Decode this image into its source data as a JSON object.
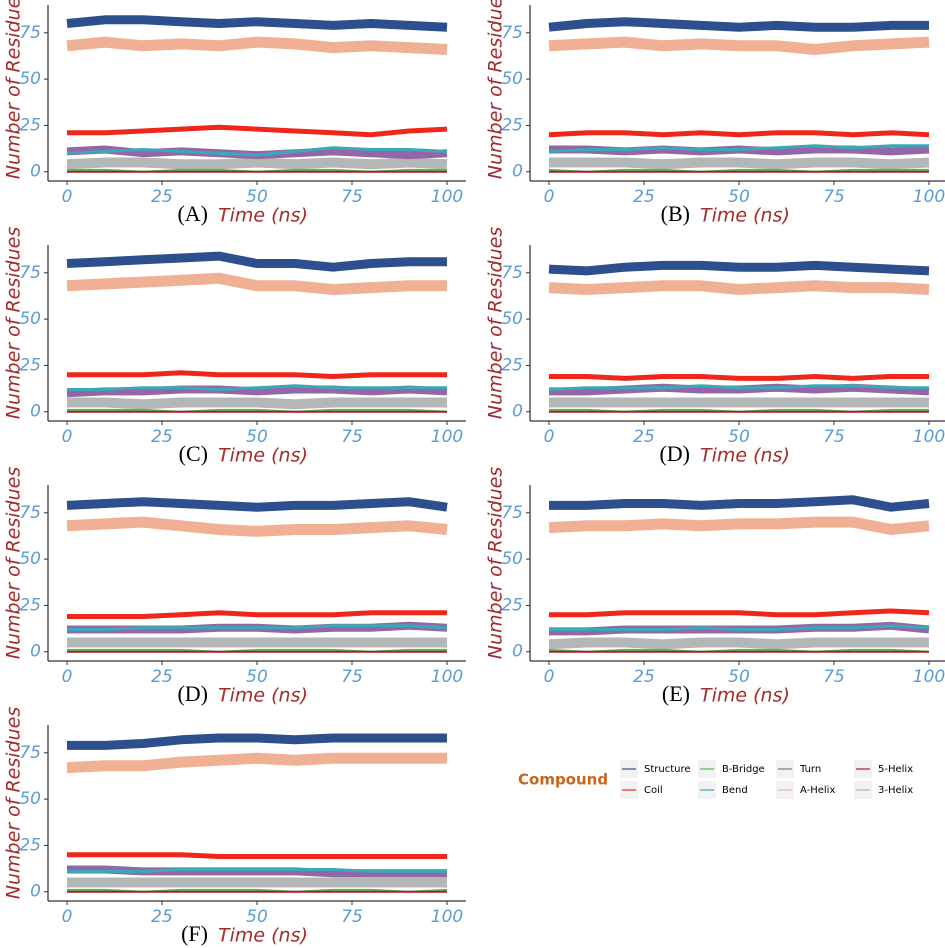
{
  "chart_data": [
    {
      "type": "line",
      "label": "(A)",
      "xlabel": "Time (ns)",
      "ylabel": "Number of Residues",
      "x": [
        0,
        10,
        20,
        30,
        40,
        50,
        60,
        70,
        80,
        90,
        100
      ],
      "xlim": [
        -5,
        105
      ],
      "ylim": [
        -5,
        90
      ],
      "xticks": [
        0,
        25,
        50,
        75,
        100
      ],
      "yticks": [
        0,
        25,
        50,
        75
      ],
      "series": [
        {
          "name": "Structure",
          "color": "#2e4f8e",
          "values": [
            80,
            82,
            82,
            81,
            80,
            81,
            80,
            79,
            80,
            79,
            78
          ]
        },
        {
          "name": "Coil",
          "color": "#f0261a",
          "values": [
            21,
            21,
            22,
            23,
            24,
            23,
            22,
            21,
            20,
            22,
            23
          ]
        },
        {
          "name": "B-Bridge",
          "color": "#4dbd4d",
          "values": [
            1,
            1,
            0,
            1,
            1,
            0,
            1,
            1,
            0,
            1,
            1
          ]
        },
        {
          "name": "Bend",
          "color": "#3ba8b8",
          "values": [
            10,
            11,
            12,
            11,
            10,
            9,
            11,
            13,
            12,
            12,
            11
          ]
        },
        {
          "name": "Turn",
          "color": "#9366a8",
          "values": [
            11,
            12,
            10,
            11,
            10,
            9,
            10,
            11,
            10,
            9,
            10
          ]
        },
        {
          "name": "A-Helix",
          "color": "#f0b094",
          "values": [
            68,
            70,
            68,
            69,
            68,
            70,
            69,
            67,
            68,
            67,
            66
          ]
        },
        {
          "name": "5-Helix",
          "color": "#b01a2a",
          "values": [
            0,
            0,
            0,
            0,
            0,
            0,
            0,
            0,
            0,
            0,
            0
          ]
        },
        {
          "name": "3-Helix",
          "color": "#b3b8b6",
          "values": [
            4,
            5,
            5,
            4,
            4,
            5,
            4,
            5,
            4,
            5,
            4
          ]
        }
      ]
    },
    {
      "type": "line",
      "label": "(B)",
      "xlabel": "Time (ns)",
      "ylabel": "Number of Residues",
      "x": [
        0,
        10,
        20,
        30,
        40,
        50,
        60,
        70,
        80,
        90,
        100
      ],
      "xlim": [
        -5,
        105
      ],
      "ylim": [
        -5,
        90
      ],
      "xticks": [
        0,
        25,
        50,
        75,
        100
      ],
      "yticks": [
        0,
        25,
        50,
        75
      ],
      "series": [
        {
          "name": "Structure",
          "color": "#2e4f8e",
          "values": [
            78,
            80,
            81,
            80,
            79,
            78,
            79,
            78,
            78,
            79,
            79
          ]
        },
        {
          "name": "Coil",
          "color": "#f0261a",
          "values": [
            20,
            21,
            21,
            20,
            21,
            20,
            21,
            21,
            20,
            21,
            20
          ]
        },
        {
          "name": "B-Bridge",
          "color": "#4dbd4d",
          "values": [
            1,
            0,
            1,
            1,
            0,
            1,
            1,
            0,
            1,
            1,
            1
          ]
        },
        {
          "name": "Bend",
          "color": "#3ba8b8",
          "values": [
            11,
            12,
            12,
            13,
            12,
            12,
            13,
            14,
            13,
            14,
            14
          ]
        },
        {
          "name": "Turn",
          "color": "#9366a8",
          "values": [
            12,
            12,
            11,
            12,
            11,
            12,
            11,
            12,
            12,
            11,
            12
          ]
        },
        {
          "name": "A-Helix",
          "color": "#f0b094",
          "values": [
            68,
            69,
            70,
            68,
            69,
            68,
            68,
            66,
            68,
            69,
            70
          ]
        },
        {
          "name": "5-Helix",
          "color": "#b01a2a",
          "values": [
            0,
            0,
            0,
            0,
            0,
            0,
            0,
            0,
            0,
            0,
            0
          ]
        },
        {
          "name": "3-Helix",
          "color": "#b3b8b6",
          "values": [
            5,
            5,
            5,
            4,
            5,
            5,
            4,
            5,
            5,
            4,
            5
          ]
        }
      ]
    },
    {
      "type": "line",
      "label": "(C)",
      "xlabel": "Time (ns)",
      "ylabel": "Number of Residues",
      "x": [
        0,
        10,
        20,
        30,
        40,
        50,
        60,
        70,
        80,
        90,
        100
      ],
      "xlim": [
        -5,
        105
      ],
      "ylim": [
        -5,
        90
      ],
      "xticks": [
        0,
        25,
        50,
        75,
        100
      ],
      "yticks": [
        0,
        25,
        50,
        75
      ],
      "series": [
        {
          "name": "Structure",
          "color": "#2e4f8e",
          "values": [
            80,
            81,
            82,
            83,
            84,
            80,
            80,
            78,
            80,
            81,
            81
          ]
        },
        {
          "name": "Coil",
          "color": "#f0261a",
          "values": [
            20,
            20,
            20,
            21,
            20,
            20,
            20,
            19,
            20,
            20,
            20
          ]
        },
        {
          "name": "B-Bridge",
          "color": "#4dbd4d",
          "values": [
            1,
            1,
            1,
            0,
            1,
            1,
            0,
            1,
            1,
            1,
            0
          ]
        },
        {
          "name": "Bend",
          "color": "#3ba8b8",
          "values": [
            12,
            12,
            13,
            13,
            12,
            13,
            14,
            13,
            13,
            13,
            13
          ]
        },
        {
          "name": "Turn",
          "color": "#9366a8",
          "values": [
            10,
            11,
            11,
            12,
            12,
            11,
            12,
            12,
            11,
            12,
            11
          ]
        },
        {
          "name": "A-Helix",
          "color": "#f0b094",
          "values": [
            68,
            69,
            70,
            71,
            72,
            68,
            68,
            66,
            67,
            68,
            68
          ]
        },
        {
          "name": "5-Helix",
          "color": "#b01a2a",
          "values": [
            0,
            0,
            0,
            0,
            0,
            0,
            0,
            0,
            0,
            0,
            0
          ]
        },
        {
          "name": "3-Helix",
          "color": "#b3b8b6",
          "values": [
            5,
            5,
            4,
            5,
            5,
            5,
            4,
            5,
            5,
            5,
            5
          ]
        }
      ]
    },
    {
      "type": "line",
      "label": "(D)",
      "xlabel": "Time (ns)",
      "ylabel": "Number of Residues",
      "x": [
        0,
        10,
        20,
        30,
        40,
        50,
        60,
        70,
        80,
        90,
        100
      ],
      "xlim": [
        -5,
        105
      ],
      "ylim": [
        -5,
        90
      ],
      "xticks": [
        0,
        25,
        50,
        75,
        100
      ],
      "yticks": [
        0,
        25,
        50,
        75
      ],
      "series": [
        {
          "name": "Structure",
          "color": "#2e4f8e",
          "values": [
            77,
            76,
            78,
            79,
            79,
            78,
            78,
            79,
            78,
            77,
            76
          ]
        },
        {
          "name": "Coil",
          "color": "#f0261a",
          "values": [
            19,
            19,
            18,
            19,
            19,
            18,
            18,
            19,
            18,
            19,
            19
          ]
        },
        {
          "name": "B-Bridge",
          "color": "#4dbd4d",
          "values": [
            1,
            1,
            0,
            1,
            1,
            0,
            1,
            1,
            0,
            1,
            1
          ]
        },
        {
          "name": "Bend",
          "color": "#3ba8b8",
          "values": [
            12,
            13,
            13,
            13,
            14,
            13,
            13,
            14,
            14,
            13,
            13
          ]
        },
        {
          "name": "Turn",
          "color": "#9366a8",
          "values": [
            11,
            11,
            12,
            13,
            12,
            12,
            13,
            12,
            13,
            12,
            11
          ]
        },
        {
          "name": "A-Helix",
          "color": "#f0b094",
          "values": [
            67,
            66,
            67,
            68,
            68,
            66,
            67,
            68,
            67,
            67,
            66
          ]
        },
        {
          "name": "5-Helix",
          "color": "#b01a2a",
          "values": [
            0,
            0,
            0,
            0,
            0,
            0,
            0,
            0,
            0,
            0,
            0
          ]
        },
        {
          "name": "3-Helix",
          "color": "#b3b8b6",
          "values": [
            5,
            5,
            5,
            5,
            5,
            5,
            5,
            5,
            5,
            5,
            5
          ]
        }
      ]
    },
    {
      "type": "line",
      "label": "(D)",
      "xlabel": "Time (ns)",
      "ylabel": "Number of Residues",
      "x": [
        0,
        10,
        20,
        30,
        40,
        50,
        60,
        70,
        80,
        90,
        100
      ],
      "xlim": [
        -5,
        105
      ],
      "ylim": [
        -5,
        90
      ],
      "xticks": [
        0,
        25,
        50,
        75,
        100
      ],
      "yticks": [
        0,
        25,
        50,
        75
      ],
      "series": [
        {
          "name": "Structure",
          "color": "#2e4f8e",
          "values": [
            79,
            80,
            81,
            80,
            79,
            78,
            79,
            79,
            80,
            81,
            78
          ]
        },
        {
          "name": "Coil",
          "color": "#f0261a",
          "values": [
            19,
            19,
            19,
            20,
            21,
            20,
            20,
            20,
            21,
            21,
            21
          ]
        },
        {
          "name": "B-Bridge",
          "color": "#4dbd4d",
          "values": [
            1,
            1,
            1,
            1,
            0,
            1,
            1,
            1,
            0,
            1,
            1
          ]
        },
        {
          "name": "Bend",
          "color": "#3ba8b8",
          "values": [
            12,
            12,
            13,
            13,
            13,
            13,
            13,
            14,
            14,
            14,
            13
          ]
        },
        {
          "name": "Turn",
          "color": "#9366a8",
          "values": [
            12,
            12,
            12,
            12,
            13,
            13,
            12,
            13,
            13,
            14,
            13
          ]
        },
        {
          "name": "A-Helix",
          "color": "#f0b094",
          "values": [
            68,
            69,
            70,
            68,
            66,
            65,
            66,
            66,
            67,
            68,
            66
          ]
        },
        {
          "name": "5-Helix",
          "color": "#b01a2a",
          "values": [
            0,
            0,
            0,
            0,
            0,
            0,
            0,
            0,
            0,
            0,
            0
          ]
        },
        {
          "name": "3-Helix",
          "color": "#b3b8b6",
          "values": [
            5,
            5,
            5,
            5,
            5,
            5,
            5,
            5,
            5,
            5,
            5
          ]
        }
      ]
    },
    {
      "type": "line",
      "label": "(E)",
      "xlabel": "Time (ns)",
      "ylabel": "Number of Residues",
      "x": [
        0,
        10,
        20,
        30,
        40,
        50,
        60,
        70,
        80,
        90,
        100
      ],
      "xlim": [
        -5,
        105
      ],
      "ylim": [
        -5,
        90
      ],
      "xticks": [
        0,
        25,
        50,
        75,
        100
      ],
      "yticks": [
        0,
        25,
        50,
        75
      ],
      "series": [
        {
          "name": "Structure",
          "color": "#2e4f8e",
          "values": [
            79,
            79,
            80,
            80,
            79,
            80,
            80,
            81,
            82,
            78,
            80
          ]
        },
        {
          "name": "Coil",
          "color": "#f0261a",
          "values": [
            20,
            20,
            21,
            21,
            21,
            21,
            20,
            20,
            21,
            22,
            21
          ]
        },
        {
          "name": "B-Bridge",
          "color": "#4dbd4d",
          "values": [
            1,
            0,
            1,
            1,
            0,
            1,
            1,
            0,
            1,
            1,
            0
          ]
        },
        {
          "name": "Bend",
          "color": "#3ba8b8",
          "values": [
            12,
            12,
            12,
            12,
            13,
            12,
            12,
            13,
            13,
            14,
            13
          ]
        },
        {
          "name": "Turn",
          "color": "#9366a8",
          "values": [
            11,
            11,
            12,
            12,
            12,
            12,
            12,
            13,
            13,
            14,
            12
          ]
        },
        {
          "name": "A-Helix",
          "color": "#f0b094",
          "values": [
            67,
            68,
            68,
            69,
            68,
            69,
            69,
            70,
            70,
            66,
            68
          ]
        },
        {
          "name": "5-Helix",
          "color": "#b01a2a",
          "values": [
            0,
            0,
            0,
            0,
            0,
            0,
            0,
            0,
            0,
            0,
            0
          ]
        },
        {
          "name": "3-Helix",
          "color": "#b3b8b6",
          "values": [
            4,
            5,
            5,
            4,
            5,
            5,
            4,
            5,
            5,
            5,
            5
          ]
        }
      ]
    },
    {
      "type": "line",
      "label": "(F)",
      "xlabel": "Time (ns)",
      "ylabel": "Number of Residues",
      "x": [
        0,
        10,
        20,
        30,
        40,
        50,
        60,
        70,
        80,
        90,
        100
      ],
      "xlim": [
        -5,
        105
      ],
      "ylim": [
        -5,
        90
      ],
      "xticks": [
        0,
        25,
        50,
        75,
        100
      ],
      "yticks": [
        0,
        25,
        50,
        75
      ],
      "series": [
        {
          "name": "Structure",
          "color": "#2e4f8e",
          "values": [
            79,
            79,
            80,
            82,
            83,
            83,
            82,
            83,
            83,
            83,
            83
          ]
        },
        {
          "name": "Coil",
          "color": "#f0261a",
          "values": [
            20,
            20,
            20,
            20,
            19,
            19,
            19,
            19,
            19,
            19,
            19
          ]
        },
        {
          "name": "B-Bridge",
          "color": "#4dbd4d",
          "values": [
            1,
            1,
            0,
            1,
            1,
            1,
            0,
            1,
            1,
            0,
            1
          ]
        },
        {
          "name": "Bend",
          "color": "#3ba8b8",
          "values": [
            11,
            11,
            11,
            12,
            12,
            12,
            12,
            12,
            11,
            11,
            11
          ]
        },
        {
          "name": "Turn",
          "color": "#9366a8",
          "values": [
            12,
            12,
            11,
            11,
            11,
            11,
            11,
            10,
            10,
            10,
            10
          ]
        },
        {
          "name": "A-Helix",
          "color": "#f0b094",
          "values": [
            67,
            68,
            68,
            70,
            71,
            72,
            71,
            72,
            72,
            72,
            72
          ]
        },
        {
          "name": "5-Helix",
          "color": "#b01a2a",
          "values": [
            0,
            0,
            0,
            0,
            0,
            0,
            0,
            0,
            0,
            0,
            0
          ]
        },
        {
          "name": "3-Helix",
          "color": "#b3b8b6",
          "values": [
            5,
            5,
            5,
            5,
            5,
            5,
            5,
            5,
            5,
            5,
            5
          ]
        }
      ]
    }
  ],
  "legend": {
    "title": "Compound"
  }
}
